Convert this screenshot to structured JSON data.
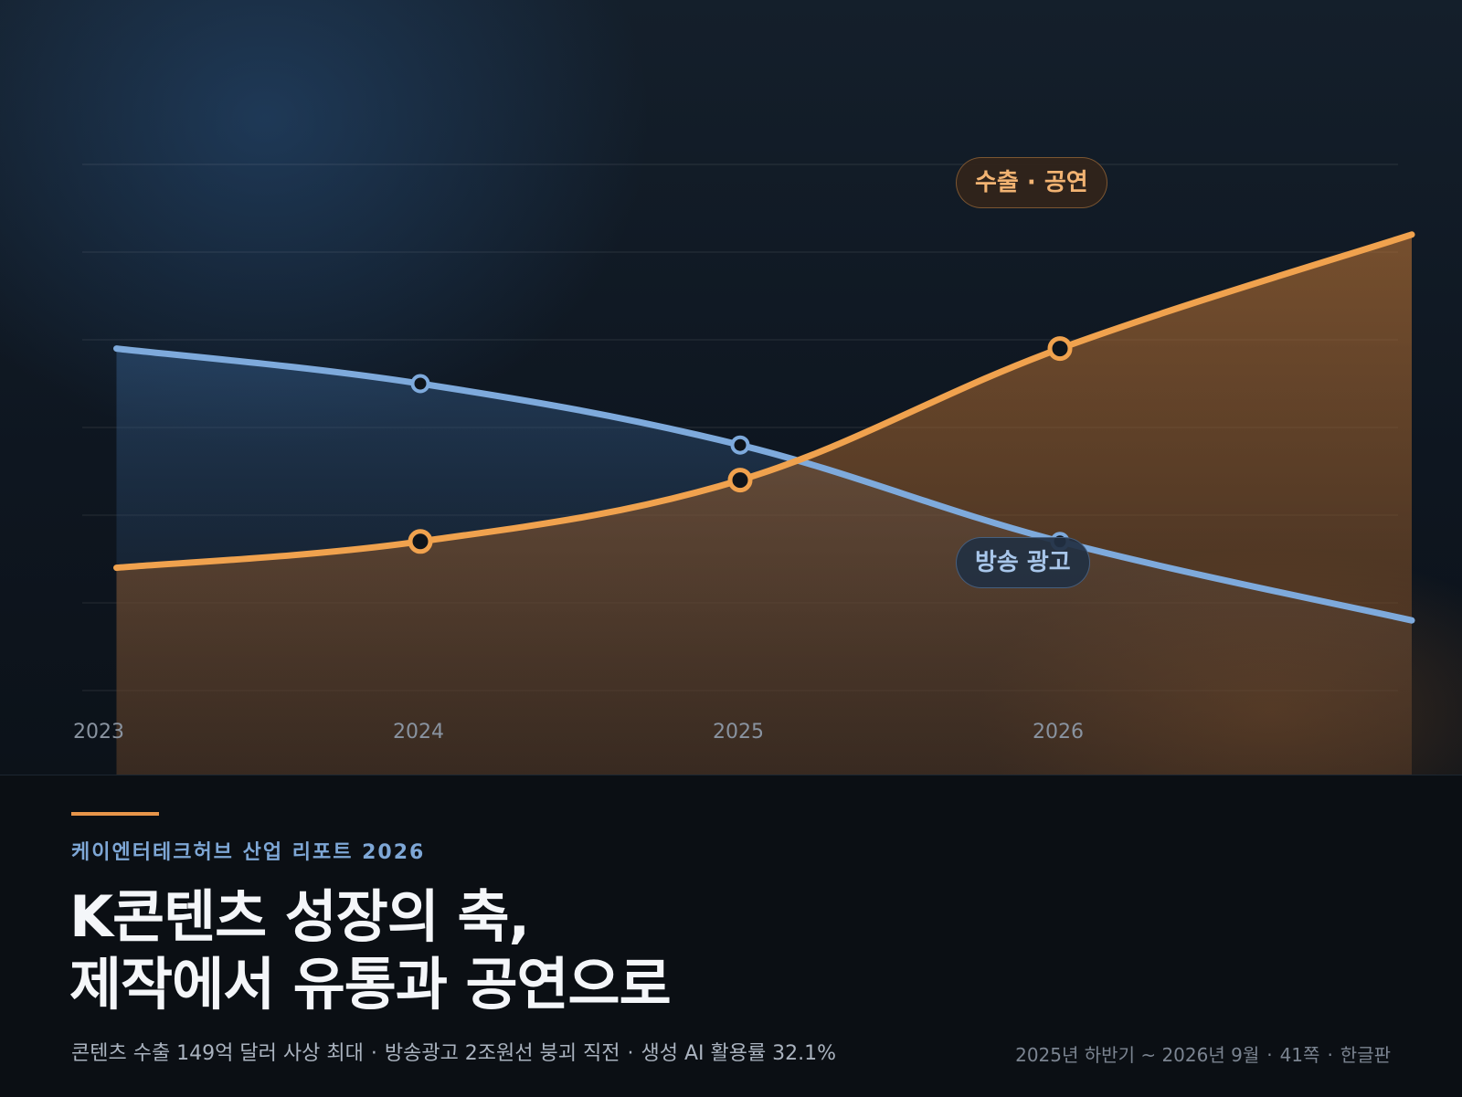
{
  "chart_data": {
    "type": "area",
    "x_categories": [
      "2023",
      "2024",
      "2025",
      "2026"
    ],
    "x_domain": [
      2023,
      2027.1
    ],
    "ylim": [
      0,
      6
    ],
    "grid": true,
    "series": [
      {
        "name": "방송 광고",
        "color": "#7eaadc",
        "points": [
          [
            2023.05,
            3.9
          ],
          [
            2024,
            3.5
          ],
          [
            2025,
            2.8
          ],
          [
            2026,
            1.7
          ],
          [
            2027.1,
            0.8
          ]
        ],
        "markers": [
          2024,
          2025,
          2026
        ]
      },
      {
        "name": "수출 · 공연",
        "color": "#f0a24e",
        "points": [
          [
            2023.05,
            1.4
          ],
          [
            2024,
            1.7
          ],
          [
            2025,
            2.4
          ],
          [
            2026,
            3.9
          ],
          [
            2027.1,
            5.2
          ]
        ],
        "markers": [
          2024,
          2025,
          2026
        ]
      }
    ]
  },
  "footer": {
    "kicker": "케이엔터테크허브 산업 리포트 2026",
    "headline_line1": "K콘텐츠 성장의 축,",
    "headline_line2": "제작에서 유통과 공연으로",
    "summary": [
      "콘텐츠 수출 149억 달러 사상 최대",
      "방송광고 2조원선 붕괴 직전",
      "생성 AI 활용률 32.1%"
    ],
    "meta": [
      "2025년 하반기 ~ 2026년 9월",
      "41쪽",
      "한글판"
    ],
    "separator": "·"
  },
  "colors": {
    "accent": "#e8954a",
    "blue": "#7eaadc",
    "orange": "#f0a24e",
    "background": "#0b0f14"
  }
}
